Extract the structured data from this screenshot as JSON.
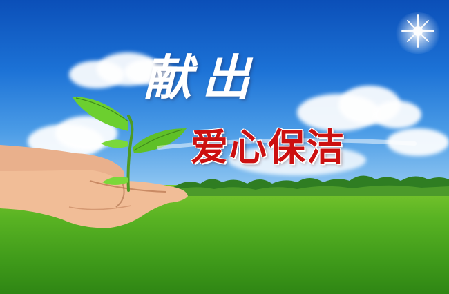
{
  "headline": {
    "line1": "献出",
    "line2": "爱心保洁"
  },
  "colors": {
    "sky_top": "#0b4fb8",
    "sky_bottom": "#9fd0f4",
    "grass": "#59b323",
    "title_red": "#cc1010",
    "title_white": "#ffffff"
  }
}
